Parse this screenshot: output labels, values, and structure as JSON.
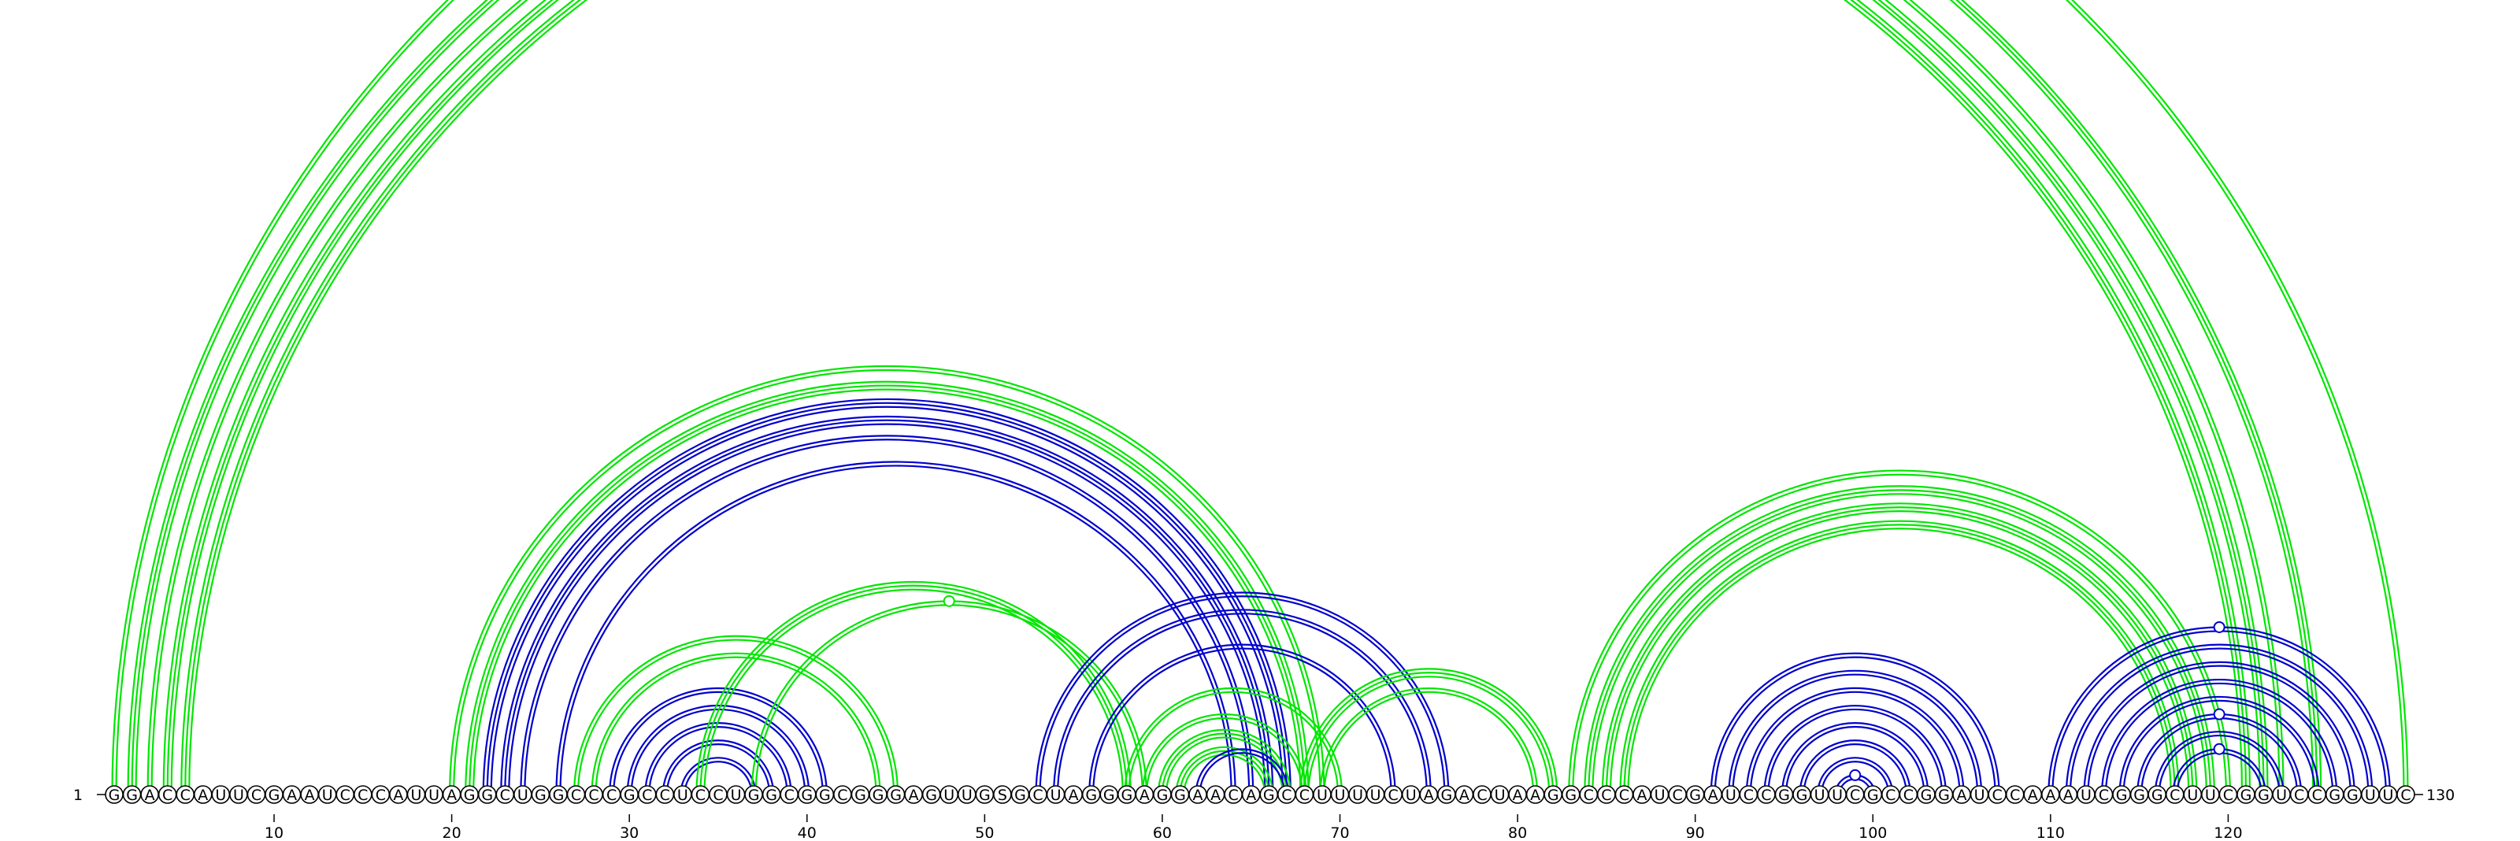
{
  "sequence": "GGACCAUUCGAAUCCCAUUAGGCUGGCCCGCCUCCUGGCGGCGGGAGUUGSGCUAGGGAGGAACAGCCUUUUCUAGACUAAGGCCCAUCGAUCCGGUUCGCCGGAUCCAAAUCGGGCUUCGGUCCGGUUC",
  "start_label": "1",
  "end_label": "130",
  "ticks": [
    {
      "pos": 10,
      "label": "10"
    },
    {
      "pos": 20,
      "label": "20"
    },
    {
      "pos": 30,
      "label": "30"
    },
    {
      "pos": 40,
      "label": "40"
    },
    {
      "pos": 50,
      "label": "50"
    },
    {
      "pos": 60,
      "label": "60"
    },
    {
      "pos": 70,
      "label": "70"
    },
    {
      "pos": 80,
      "label": "80"
    },
    {
      "pos": 90,
      "label": "90"
    },
    {
      "pos": 100,
      "label": "100"
    },
    {
      "pos": 110,
      "label": "110"
    },
    {
      "pos": 120,
      "label": "120"
    }
  ],
  "colors": {
    "green": "#00e600",
    "blue": "#0000cc"
  },
  "arcs": [
    {
      "i": 1,
      "j": 130,
      "color": "green",
      "lines": 2,
      "marker": true
    },
    {
      "i": 2,
      "j": 125,
      "color": "green",
      "lines": 3
    },
    {
      "i": 3,
      "j": 123,
      "color": "green",
      "lines": 2
    },
    {
      "i": 4,
      "j": 122,
      "color": "green",
      "lines": 3
    },
    {
      "i": 5,
      "j": 121,
      "color": "green",
      "lines": 3
    },
    {
      "i": 20,
      "j": 69,
      "color": "green",
      "lines": 2
    },
    {
      "i": 21,
      "j": 68,
      "color": "green",
      "lines": 3
    },
    {
      "i": 22,
      "j": 67,
      "color": "blue",
      "lines": 3
    },
    {
      "i": 23,
      "j": 66,
      "color": "blue",
      "lines": 3
    },
    {
      "i": 24,
      "j": 65,
      "color": "blue",
      "lines": 2
    },
    {
      "i": 26,
      "j": 64,
      "color": "blue",
      "lines": 2
    },
    {
      "i": 27,
      "j": 45,
      "color": "green",
      "lines": 2
    },
    {
      "i": 28,
      "j": 44,
      "color": "green",
      "lines": 2
    },
    {
      "i": 29,
      "j": 41,
      "color": "blue",
      "lines": 2
    },
    {
      "i": 30,
      "j": 40,
      "color": "blue",
      "lines": 2
    },
    {
      "i": 31,
      "j": 39,
      "color": "blue",
      "lines": 2
    },
    {
      "i": 32,
      "j": 38,
      "color": "blue",
      "lines": 2
    },
    {
      "i": 33,
      "j": 37,
      "color": "blue",
      "lines": 2
    },
    {
      "i": 34,
      "j": 58,
      "color": "green",
      "lines": 3
    },
    {
      "i": 37,
      "j": 59,
      "color": "green",
      "lines": 2,
      "marker": true
    },
    {
      "i": 53,
      "j": 76,
      "color": "blue",
      "lines": 2
    },
    {
      "i": 54,
      "j": 75,
      "color": "blue",
      "lines": 2
    },
    {
      "i": 56,
      "j": 73,
      "color": "blue",
      "lines": 2
    },
    {
      "i": 58,
      "j": 70,
      "color": "green",
      "lines": 2
    },
    {
      "i": 59,
      "j": 68,
      "color": "green",
      "lines": 2
    },
    {
      "i": 60,
      "j": 67,
      "color": "green",
      "lines": 3
    },
    {
      "i": 61,
      "j": 66,
      "color": "green",
      "lines": 3
    },
    {
      "i": 62,
      "j": 67,
      "color": "blue",
      "lines": 2
    },
    {
      "i": 68,
      "j": 82,
      "color": "green",
      "lines": 3
    },
    {
      "i": 69,
      "j": 81,
      "color": "green",
      "lines": 2
    },
    {
      "i": 83,
      "j": 120,
      "color": "green",
      "lines": 2
    },
    {
      "i": 84,
      "j": 119,
      "color": "green",
      "lines": 3
    },
    {
      "i": 85,
      "j": 118,
      "color": "green",
      "lines": 3
    },
    {
      "i": 86,
      "j": 117,
      "color": "green",
      "lines": 3
    },
    {
      "i": 91,
      "j": 107,
      "color": "blue",
      "lines": 2
    },
    {
      "i": 92,
      "j": 106,
      "color": "blue",
      "lines": 2
    },
    {
      "i": 93,
      "j": 105,
      "color": "blue",
      "lines": 2
    },
    {
      "i": 94,
      "j": 104,
      "color": "blue",
      "lines": 2
    },
    {
      "i": 95,
      "j": 103,
      "color": "blue",
      "lines": 2
    },
    {
      "i": 96,
      "j": 102,
      "color": "blue",
      "lines": 2
    },
    {
      "i": 97,
      "j": 101,
      "color": "blue",
      "lines": 2
    },
    {
      "i": 98,
      "j": 100,
      "color": "blue",
      "lines": 2,
      "marker": true
    },
    {
      "i": 110,
      "j": 129,
      "color": "blue",
      "lines": 2,
      "marker": true
    },
    {
      "i": 111,
      "j": 128,
      "color": "blue",
      "lines": 2
    },
    {
      "i": 112,
      "j": 127,
      "color": "blue",
      "lines": 2
    },
    {
      "i": 113,
      "j": 126,
      "color": "blue",
      "lines": 2
    },
    {
      "i": 114,
      "j": 125,
      "color": "blue",
      "lines": 2
    },
    {
      "i": 115,
      "j": 124,
      "color": "blue",
      "lines": 2,
      "marker": true
    },
    {
      "i": 116,
      "j": 123,
      "color": "blue",
      "lines": 2
    },
    {
      "i": 117,
      "j": 122,
      "color": "blue",
      "lines": 2,
      "marker": true
    }
  ]
}
